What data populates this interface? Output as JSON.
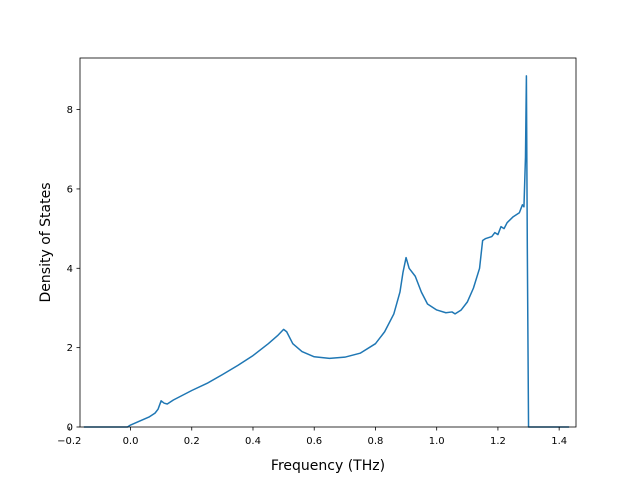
{
  "chart_data": {
    "type": "line",
    "title": "",
    "xlabel": "Frequency (THz)",
    "ylabel": "Density of States",
    "xlim": [
      -0.165,
      1.455
    ],
    "ylim": [
      0,
      9.3
    ],
    "grid": false,
    "legend": "none",
    "x_ticks": [
      -0.2,
      0.0,
      0.2,
      0.4,
      0.6,
      0.8,
      1.0,
      1.2,
      1.4
    ],
    "x_tick_labels": [
      "−0.2",
      "0.0",
      "0.2",
      "0.4",
      "0.6",
      "0.8",
      "1.0",
      "1.2",
      "1.4"
    ],
    "y_ticks": [
      0,
      2,
      4,
      6,
      8
    ],
    "y_tick_labels": [
      "0",
      "2",
      "4",
      "6",
      "8"
    ],
    "series": [
      {
        "color": "#1f77b4",
        "x": [
          -0.15,
          -0.05,
          -0.01,
          0.0,
          0.03,
          0.06,
          0.08,
          0.09,
          0.1,
          0.11,
          0.12,
          0.14,
          0.17,
          0.2,
          0.25,
          0.3,
          0.35,
          0.4,
          0.45,
          0.48,
          0.5,
          0.51,
          0.53,
          0.56,
          0.6,
          0.65,
          0.7,
          0.75,
          0.8,
          0.83,
          0.86,
          0.88,
          0.89,
          0.9,
          0.91,
          0.93,
          0.95,
          0.97,
          1.0,
          1.03,
          1.05,
          1.06,
          1.08,
          1.1,
          1.12,
          1.14,
          1.15,
          1.16,
          1.18,
          1.19,
          1.2,
          1.21,
          1.22,
          1.23,
          1.25,
          1.27,
          1.28,
          1.285,
          1.29,
          1.293,
          1.296,
          1.3,
          1.35,
          1.43
        ],
        "y": [
          0.0,
          0.0,
          0.0,
          0.05,
          0.15,
          0.25,
          0.35,
          0.45,
          0.66,
          0.6,
          0.58,
          0.68,
          0.8,
          0.92,
          1.1,
          1.32,
          1.55,
          1.8,
          2.1,
          2.3,
          2.46,
          2.4,
          2.1,
          1.9,
          1.77,
          1.73,
          1.76,
          1.86,
          2.1,
          2.4,
          2.85,
          3.4,
          3.9,
          4.27,
          4.0,
          3.8,
          3.4,
          3.1,
          2.95,
          2.88,
          2.9,
          2.85,
          2.95,
          3.15,
          3.5,
          4.0,
          4.7,
          4.75,
          4.8,
          4.9,
          4.85,
          5.05,
          5.0,
          5.15,
          5.3,
          5.4,
          5.6,
          5.55,
          6.8,
          8.85,
          4.5,
          0.0,
          0.0,
          0.0
        ]
      }
    ]
  }
}
